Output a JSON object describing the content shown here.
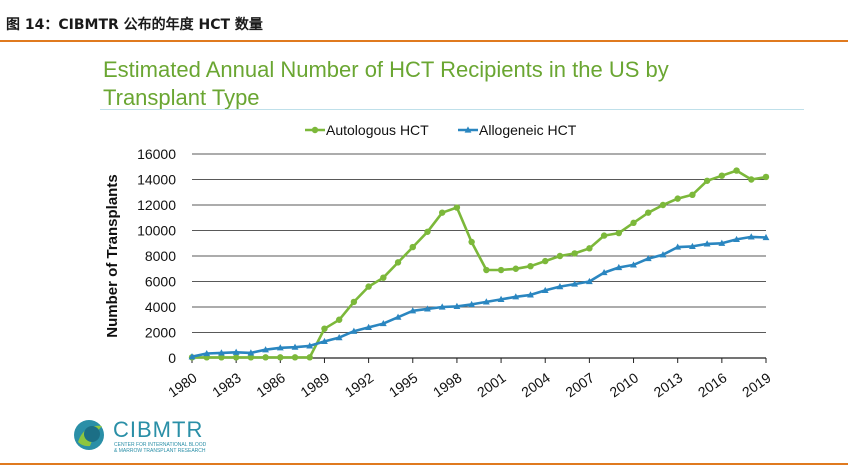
{
  "caption": "图 14：CIBMTR 公布的年度 HCT 数量",
  "logo": {
    "name": "CIBMTR",
    "subtitle_line1": "CENTER FOR INTERNATIONAL BLOOD",
    "subtitle_line2": "& MARROW TRANSPLANT RESEARCH"
  },
  "colors": {
    "accent_rule": "#e07a1f",
    "title_green": "#6aa632",
    "autologous": "#7cb83a",
    "allogeneic": "#2a86c0"
  },
  "chart_data": {
    "type": "line",
    "title_line1": "Estimated Annual Number of HCT Recipients in the US by",
    "title_line2": "Transplant Type",
    "ylabel": "Number of Transplants",
    "xlabel": "",
    "ylim": [
      0,
      16000
    ],
    "yticks": [
      0,
      2000,
      4000,
      6000,
      8000,
      10000,
      12000,
      14000,
      16000
    ],
    "ytick_labels": [
      "0",
      "2000",
      "4000",
      "6000",
      "8000",
      "10000",
      "12000",
      "14000",
      "16000"
    ],
    "xlim": [
      1980,
      2019
    ],
    "xticks": [
      1980,
      1983,
      1986,
      1989,
      1992,
      1995,
      1998,
      2001,
      2004,
      2007,
      2010,
      2013,
      2016,
      2019
    ],
    "xtick_labels": [
      "1980",
      "1983",
      "1986",
      "1989",
      "1992",
      "1995",
      "1998",
      "2001",
      "2004",
      "2007",
      "2010",
      "2013",
      "2016",
      "2019"
    ],
    "grid": "horizontal",
    "legend_position": "top",
    "x": [
      1980,
      1981,
      1982,
      1983,
      1984,
      1985,
      1986,
      1987,
      1988,
      1989,
      1990,
      1991,
      1992,
      1993,
      1994,
      1995,
      1996,
      1997,
      1998,
      1999,
      2000,
      2001,
      2002,
      2003,
      2004,
      2005,
      2006,
      2007,
      2008,
      2009,
      2010,
      2011,
      2012,
      2013,
      2014,
      2015,
      2016,
      2017,
      2018,
      2019
    ],
    "series": [
      {
        "name": "Autologous HCT",
        "color": "#7cb83a",
        "marker": "circle",
        "values": [
          50,
          50,
          50,
          50,
          50,
          50,
          50,
          50,
          50,
          2300,
          3000,
          4400,
          5600,
          6300,
          7500,
          8700,
          9900,
          11400,
          11800,
          9100,
          6900,
          6900,
          7000,
          7200,
          7600,
          8000,
          8200,
          8600,
          9600,
          9800,
          10600,
          11400,
          12000,
          12500,
          12800,
          13900,
          14300,
          14700,
          14000,
          14200
        ]
      },
      {
        "name": "Allogeneic HCT",
        "color": "#2a86c0",
        "marker": "triangle",
        "values": [
          100,
          350,
          400,
          450,
          400,
          650,
          800,
          850,
          950,
          1300,
          1600,
          2100,
          2400,
          2700,
          3200,
          3700,
          3850,
          4000,
          4050,
          4200,
          4400,
          4600,
          4800,
          4950,
          5300,
          5600,
          5800,
          6000,
          6700,
          7100,
          7300,
          7800,
          8100,
          8700,
          8750,
          8950,
          9000,
          9300,
          9500,
          9450
        ]
      }
    ]
  }
}
